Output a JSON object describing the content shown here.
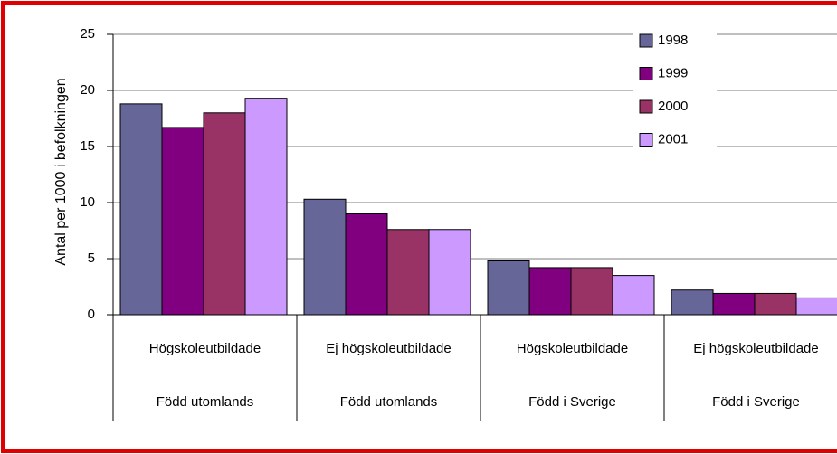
{
  "chart_data": {
    "type": "bar",
    "y_axis_label": "Antal per 1000 i befolkningen",
    "categories": [
      "Högskoleutbildade",
      "Ej högskoleutbildade",
      "Högskoleutbildade",
      "Ej högskoleutbildade"
    ],
    "category_groups": [
      "Född utomlands",
      "Född utomlands",
      "Född i Sverige",
      "Född i Sverige"
    ],
    "series": [
      {
        "name": "1998",
        "color": "#666699",
        "values": [
          18.8,
          10.3,
          4.8,
          2.2
        ]
      },
      {
        "name": "1999",
        "color": "#800080",
        "values": [
          16.7,
          9.0,
          4.2,
          1.9
        ]
      },
      {
        "name": "2000",
        "color": "#993366",
        "values": [
          18.0,
          7.6,
          4.2,
          1.9
        ]
      },
      {
        "name": "2001",
        "color": "#cc99ff",
        "values": [
          19.3,
          7.6,
          3.5,
          1.5
        ]
      }
    ],
    "ylim": [
      0,
      25
    ],
    "yticks": [
      0,
      5,
      10,
      15,
      20,
      25
    ],
    "grid": true,
    "legend": "top-right"
  }
}
